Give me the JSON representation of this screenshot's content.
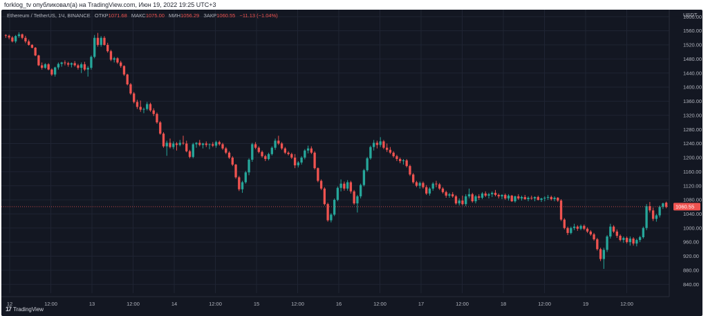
{
  "header": {
    "publisher_line": "forklog_tv опубликовал(а) на TradingView.com, Июн 19, 2022 19:25 UTC+3"
  },
  "legend": {
    "symbol": "Ethereum / TetherUS",
    "interval": "1Ч",
    "exchange": "BINANCE",
    "open_label": "ОТКР",
    "open_value": "1071.68",
    "high_label": "МАКС",
    "high_value": "1075.00",
    "low_label": "МИН",
    "low_value": "1056.29",
    "close_label": "ЗАКР",
    "close_value": "1060.55",
    "change": "−11.13 (−1.04%)"
  },
  "brand": {
    "name": "TradingView"
  },
  "colors": {
    "background": "#131722",
    "up": "#26a69a",
    "down": "#ef5350",
    "grid": "#1f2433",
    "axis_text": "#b2b5be",
    "price_line": "#ef5350"
  },
  "chart_data": {
    "type": "candlestick",
    "currency_label": "USDT",
    "ylim": [
      815,
      1620
    ],
    "y_ticks": [
      840,
      880,
      920,
      960,
      1000,
      1040,
      1080,
      1120,
      1160,
      1200,
      1240,
      1280,
      1320,
      1360,
      1400,
      1440,
      1480,
      1520,
      1560,
      1600
    ],
    "y_tick_labels": [
      "840.00",
      "880.00",
      "920.00",
      "960.00",
      "1000.00",
      "1040.00",
      "1080.00",
      "1120.00",
      "1160.00",
      "1200.00",
      "1240.00",
      "1280.00",
      "1320.00",
      "1360.00",
      "1400.00",
      "1440.00",
      "1480.00",
      "1520.00",
      "1560.00",
      "1600.00"
    ],
    "x_tick_labels": [
      "12",
      "12:00",
      "13",
      "12:00",
      "14",
      "12:00",
      "15",
      "12:00",
      "16",
      "12:00",
      "17",
      "12:00",
      "18",
      "12:00",
      "19",
      "12:00"
    ],
    "last_price": 1060.55,
    "last_price_label": "1060.55",
    "grid": true,
    "candles": [
      [
        1548,
        1550,
        1540,
        1546
      ],
      [
        1546,
        1549,
        1536,
        1541
      ],
      [
        1541,
        1545,
        1527,
        1530
      ],
      [
        1530,
        1548,
        1525,
        1545
      ],
      [
        1545,
        1556,
        1540,
        1550
      ],
      [
        1550,
        1552,
        1536,
        1540
      ],
      [
        1540,
        1546,
        1525,
        1530
      ],
      [
        1530,
        1535,
        1518,
        1520
      ],
      [
        1520,
        1522,
        1510,
        1512
      ],
      [
        1512,
        1514,
        1488,
        1490
      ],
      [
        1490,
        1492,
        1460,
        1462
      ],
      [
        1462,
        1470,
        1450,
        1455
      ],
      [
        1455,
        1468,
        1452,
        1465
      ],
      [
        1465,
        1468,
        1448,
        1450
      ],
      [
        1450,
        1453,
        1432,
        1436
      ],
      [
        1436,
        1458,
        1430,
        1456
      ],
      [
        1456,
        1470,
        1450,
        1466
      ],
      [
        1466,
        1472,
        1458,
        1470
      ],
      [
        1470,
        1476,
        1462,
        1468
      ],
      [
        1468,
        1472,
        1458,
        1464
      ],
      [
        1464,
        1470,
        1456,
        1468
      ],
      [
        1468,
        1474,
        1458,
        1462
      ],
      [
        1462,
        1466,
        1450,
        1455
      ],
      [
        1455,
        1470,
        1440,
        1465
      ],
      [
        1465,
        1472,
        1446,
        1450
      ],
      [
        1450,
        1460,
        1430,
        1455
      ],
      [
        1455,
        1490,
        1450,
        1486
      ],
      [
        1486,
        1548,
        1482,
        1540
      ],
      [
        1540,
        1554,
        1515,
        1520
      ],
      [
        1520,
        1545,
        1515,
        1540
      ],
      [
        1540,
        1545,
        1518,
        1520
      ],
      [
        1520,
        1526,
        1498,
        1502
      ],
      [
        1502,
        1506,
        1474,
        1478
      ],
      [
        1478,
        1486,
        1470,
        1482
      ],
      [
        1482,
        1485,
        1466,
        1470
      ],
      [
        1470,
        1475,
        1455,
        1460
      ],
      [
        1460,
        1462,
        1432,
        1436
      ],
      [
        1436,
        1438,
        1405,
        1408
      ],
      [
        1408,
        1412,
        1378,
        1382
      ],
      [
        1382,
        1386,
        1354,
        1358
      ],
      [
        1358,
        1364,
        1338,
        1344
      ],
      [
        1344,
        1362,
        1330,
        1336
      ],
      [
        1336,
        1342,
        1326,
        1338
      ],
      [
        1338,
        1358,
        1334,
        1352
      ],
      [
        1352,
        1356,
        1330,
        1334
      ],
      [
        1334,
        1340,
        1318,
        1324
      ],
      [
        1324,
        1328,
        1296,
        1300
      ],
      [
        1300,
        1304,
        1265,
        1268
      ],
      [
        1268,
        1272,
        1228,
        1232
      ],
      [
        1232,
        1248,
        1205,
        1242
      ],
      [
        1242,
        1254,
        1226,
        1230
      ],
      [
        1230,
        1246,
        1224,
        1240
      ],
      [
        1240,
        1244,
        1220,
        1236
      ],
      [
        1236,
        1250,
        1232,
        1242
      ],
      [
        1242,
        1262,
        1236,
        1240
      ],
      [
        1240,
        1248,
        1215,
        1218
      ],
      [
        1218,
        1222,
        1198,
        1202
      ],
      [
        1202,
        1242,
        1198,
        1238
      ],
      [
        1238,
        1244,
        1228,
        1242
      ],
      [
        1242,
        1250,
        1232,
        1236
      ],
      [
        1236,
        1242,
        1226,
        1240
      ],
      [
        1240,
        1246,
        1230,
        1236
      ],
      [
        1236,
        1240,
        1224,
        1238
      ],
      [
        1238,
        1244,
        1230,
        1234
      ],
      [
        1234,
        1248,
        1228,
        1244
      ],
      [
        1244,
        1248,
        1234,
        1238
      ],
      [
        1238,
        1242,
        1222,
        1226
      ],
      [
        1226,
        1230,
        1210,
        1214
      ],
      [
        1214,
        1218,
        1196,
        1200
      ],
      [
        1200,
        1204,
        1176,
        1180
      ],
      [
        1180,
        1182,
        1140,
        1144
      ],
      [
        1144,
        1148,
        1105,
        1110
      ],
      [
        1110,
        1134,
        1100,
        1130
      ],
      [
        1130,
        1162,
        1126,
        1158
      ],
      [
        1158,
        1198,
        1150,
        1194
      ],
      [
        1194,
        1242,
        1188,
        1238
      ],
      [
        1238,
        1244,
        1224,
        1228
      ],
      [
        1228,
        1232,
        1212,
        1216
      ],
      [
        1216,
        1220,
        1200,
        1204
      ],
      [
        1204,
        1208,
        1190,
        1196
      ],
      [
        1196,
        1214,
        1192,
        1210
      ],
      [
        1210,
        1232,
        1206,
        1228
      ],
      [
        1228,
        1254,
        1222,
        1248
      ],
      [
        1248,
        1262,
        1236,
        1240
      ],
      [
        1240,
        1244,
        1222,
        1226
      ],
      [
        1226,
        1230,
        1210,
        1214
      ],
      [
        1214,
        1218,
        1206,
        1210
      ],
      [
        1210,
        1214,
        1196,
        1200
      ],
      [
        1200,
        1210,
        1170,
        1178
      ],
      [
        1178,
        1190,
        1172,
        1186
      ],
      [
        1186,
        1204,
        1180,
        1200
      ],
      [
        1200,
        1224,
        1195,
        1220
      ],
      [
        1220,
        1234,
        1212,
        1226
      ],
      [
        1226,
        1232,
        1210,
        1214
      ],
      [
        1214,
        1218,
        1166,
        1170
      ],
      [
        1170,
        1172,
        1130,
        1134
      ],
      [
        1134,
        1138,
        1108,
        1112
      ],
      [
        1112,
        1116,
        1064,
        1068
      ],
      [
        1068,
        1072,
        1018,
        1022
      ],
      [
        1022,
        1042,
        1016,
        1038
      ],
      [
        1038,
        1084,
        1034,
        1080
      ],
      [
        1080,
        1118,
        1076,
        1114
      ],
      [
        1114,
        1138,
        1104,
        1126
      ],
      [
        1126,
        1132,
        1106,
        1112
      ],
      [
        1112,
        1136,
        1106,
        1130
      ],
      [
        1130,
        1134,
        1098,
        1104
      ],
      [
        1104,
        1108,
        1066,
        1070
      ],
      [
        1070,
        1094,
        1044,
        1090
      ],
      [
        1090,
        1126,
        1084,
        1122
      ],
      [
        1122,
        1168,
        1118,
        1164
      ],
      [
        1164,
        1202,
        1160,
        1198
      ],
      [
        1198,
        1234,
        1194,
        1230
      ],
      [
        1230,
        1250,
        1220,
        1242
      ],
      [
        1242,
        1248,
        1226,
        1236
      ],
      [
        1236,
        1258,
        1230,
        1246
      ],
      [
        1246,
        1250,
        1224,
        1228
      ],
      [
        1228,
        1240,
        1216,
        1222
      ],
      [
        1222,
        1230,
        1210,
        1214
      ],
      [
        1214,
        1218,
        1200,
        1204
      ],
      [
        1204,
        1208,
        1190,
        1196
      ],
      [
        1196,
        1200,
        1184,
        1190
      ],
      [
        1190,
        1196,
        1180,
        1192
      ],
      [
        1192,
        1196,
        1172,
        1176
      ],
      [
        1176,
        1180,
        1148,
        1152
      ],
      [
        1152,
        1156,
        1126,
        1130
      ],
      [
        1130,
        1134,
        1116,
        1120
      ],
      [
        1120,
        1132,
        1112,
        1128
      ],
      [
        1128,
        1132,
        1112,
        1116
      ],
      [
        1116,
        1122,
        1094,
        1098
      ],
      [
        1098,
        1116,
        1092,
        1112
      ],
      [
        1112,
        1130,
        1106,
        1126
      ],
      [
        1126,
        1134,
        1116,
        1124
      ],
      [
        1124,
        1128,
        1108,
        1112
      ],
      [
        1112,
        1116,
        1098,
        1102
      ],
      [
        1102,
        1106,
        1086,
        1092
      ],
      [
        1092,
        1100,
        1086,
        1096
      ],
      [
        1096,
        1102,
        1086,
        1090
      ],
      [
        1090,
        1094,
        1066,
        1070
      ],
      [
        1070,
        1084,
        1064,
        1078
      ],
      [
        1078,
        1092,
        1064,
        1068
      ],
      [
        1068,
        1096,
        1062,
        1090
      ],
      [
        1090,
        1112,
        1084,
        1096
      ],
      [
        1096,
        1100,
        1072,
        1076
      ],
      [
        1076,
        1094,
        1070,
        1090
      ],
      [
        1090,
        1096,
        1080,
        1086
      ],
      [
        1086,
        1102,
        1082,
        1098
      ],
      [
        1098,
        1104,
        1088,
        1092
      ],
      [
        1092,
        1100,
        1084,
        1096
      ],
      [
        1096,
        1104,
        1088,
        1100
      ],
      [
        1100,
        1108,
        1090,
        1094
      ],
      [
        1094,
        1098,
        1084,
        1090
      ],
      [
        1090,
        1096,
        1082,
        1094
      ],
      [
        1094,
        1098,
        1080,
        1084
      ],
      [
        1084,
        1096,
        1078,
        1092
      ],
      [
        1092,
        1094,
        1074,
        1076
      ],
      [
        1076,
        1092,
        1072,
        1090
      ],
      [
        1090,
        1096,
        1080,
        1084
      ],
      [
        1084,
        1092,
        1078,
        1088
      ],
      [
        1088,
        1094,
        1080,
        1082
      ],
      [
        1082,
        1090,
        1076,
        1086
      ],
      [
        1086,
        1092,
        1080,
        1084
      ],
      [
        1084,
        1090,
        1076,
        1088
      ],
      [
        1088,
        1092,
        1078,
        1080
      ],
      [
        1080,
        1086,
        1074,
        1084
      ],
      [
        1084,
        1090,
        1076,
        1086
      ],
      [
        1086,
        1094,
        1080,
        1088
      ],
      [
        1088,
        1092,
        1078,
        1082
      ],
      [
        1082,
        1090,
        1076,
        1086
      ],
      [
        1086,
        1088,
        1074,
        1078
      ],
      [
        1078,
        1082,
        1020,
        1024
      ],
      [
        1024,
        1028,
        996,
        1000
      ],
      [
        1000,
        1004,
        980,
        986
      ],
      [
        986,
        1004,
        982,
        1000
      ],
      [
        1000,
        1012,
        994,
        1004
      ],
      [
        1004,
        1008,
        992,
        998
      ],
      [
        998,
        1010,
        994,
        1006
      ],
      [
        1006,
        1010,
        994,
        998
      ],
      [
        998,
        1002,
        986,
        990
      ],
      [
        990,
        994,
        978,
        982
      ],
      [
        982,
        986,
        964,
        968
      ],
      [
        968,
        972,
        936,
        940
      ],
      [
        940,
        944,
        906,
        912
      ],
      [
        912,
        944,
        884,
        938
      ],
      [
        938,
        980,
        932,
        976
      ],
      [
        976,
        1012,
        970,
        1004
      ],
      [
        1004,
        1008,
        986,
        990
      ],
      [
        990,
        996,
        972,
        978
      ],
      [
        978,
        982,
        962,
        966
      ],
      [
        966,
        976,
        958,
        972
      ],
      [
        972,
        976,
        956,
        960
      ],
      [
        960,
        976,
        950,
        970
      ],
      [
        970,
        974,
        950,
        956
      ],
      [
        956,
        970,
        948,
        966
      ],
      [
        966,
        978,
        960,
        974
      ],
      [
        974,
        1004,
        970,
        1000
      ],
      [
        1000,
        1068,
        994,
        1062
      ],
      [
        1062,
        1074,
        1044,
        1050
      ],
      [
        1050,
        1058,
        1020,
        1026
      ],
      [
        1026,
        1040,
        1018,
        1036
      ],
      [
        1036,
        1064,
        1030,
        1060
      ],
      [
        1060,
        1072,
        1054,
        1070
      ],
      [
        1072,
        1075,
        1056,
        1060
      ]
    ]
  }
}
